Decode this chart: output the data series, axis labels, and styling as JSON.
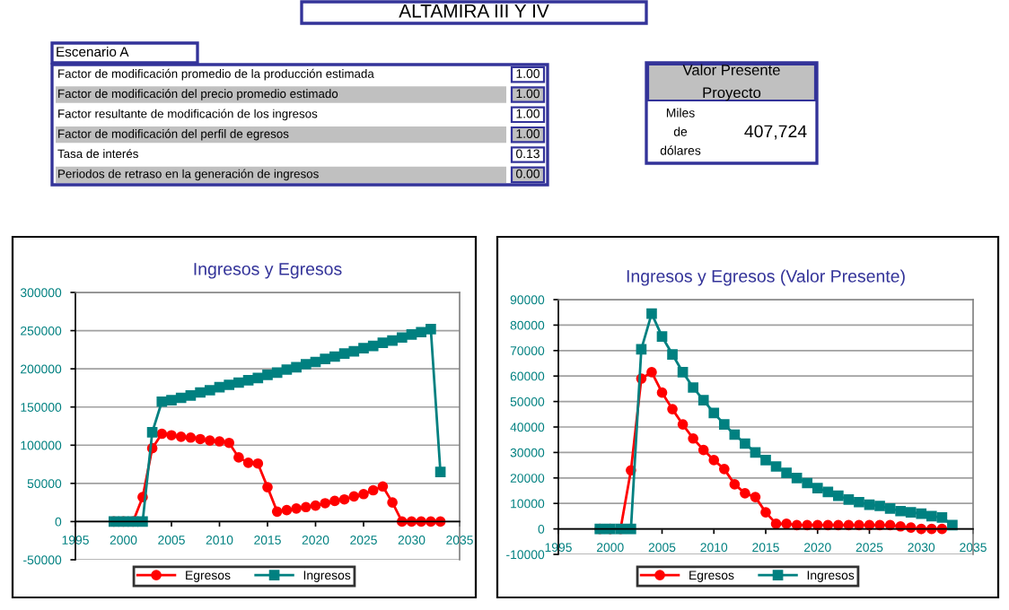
{
  "chart_data": [
    {
      "type": "other",
      "title": "ALTAMIRA III Y IV",
      "subtitle": "Escenario A",
      "categories": [
        "Factor de modificación promedio de la producción estimada",
        "Factor de modificación del precio promedio estimado",
        "Factor resultante de modificación de los ingresos",
        "Factor de modificación del perfil de egresos",
        "Tasa de interés",
        "Periodos de retraso en la generación de ingresos"
      ],
      "value_labels": [
        "1.00",
        "1.00",
        "1.00",
        "1.00",
        "0.13",
        "0.00"
      ],
      "annotations": [
        "Valor Presente\nProyecto",
        "Miles\nde\ndólares",
        "407,724"
      ]
    },
    {
      "type": "line",
      "title": "Ingresos y Egresos",
      "x": [
        1999,
        2000,
        2001,
        2002,
        2003,
        2004,
        2005,
        2006,
        2007,
        2008,
        2009,
        2010,
        2011,
        2012,
        2013,
        2014,
        2015,
        2016,
        2017,
        2018,
        2019,
        2020,
        2021,
        2022,
        2023,
        2024,
        2025,
        2026,
        2027,
        2028,
        2029,
        2030,
        2031,
        2032,
        2033
      ],
      "series": [
        {
          "name": "Egresos",
          "color": "#ff0000",
          "marker": "circle",
          "values": [
            0,
            0,
            0,
            32000,
            96000,
            115000,
            113000,
            111000,
            110000,
            108000,
            106000,
            105000,
            103000,
            84000,
            77000,
            76000,
            45000,
            13000,
            15000,
            17000,
            19000,
            21000,
            24000,
            27000,
            29000,
            33000,
            36000,
            41000,
            46000,
            25000,
            0,
            0,
            0,
            0,
            0
          ]
        },
        {
          "name": "Ingresos",
          "color": "#008080",
          "marker": "square",
          "values": [
            0,
            0,
            0,
            0,
            117000,
            157000,
            159000,
            162000,
            165000,
            169000,
            172000,
            176000,
            179000,
            182000,
            185000,
            188000,
            192000,
            195000,
            199000,
            202000,
            206000,
            209000,
            213000,
            216000,
            220000,
            223000,
            227000,
            230000,
            234000,
            237000,
            241000,
            245000,
            248000,
            252000,
            65000
          ]
        }
      ],
      "xlim": [
        1995,
        2035
      ],
      "xticks": [
        1995,
        2000,
        2005,
        2010,
        2015,
        2020,
        2025,
        2030,
        2035
      ],
      "ylim": [
        -50000,
        300000
      ],
      "yticks": [
        -50000,
        0,
        50000,
        100000,
        150000,
        200000,
        250000,
        300000
      ],
      "grid": "y",
      "legend": "bottom"
    },
    {
      "type": "line",
      "title": "Ingresos y Egresos (Valor Presente)",
      "x": [
        1999,
        2000,
        2001,
        2002,
        2003,
        2004,
        2005,
        2006,
        2007,
        2008,
        2009,
        2010,
        2011,
        2012,
        2013,
        2014,
        2015,
        2016,
        2017,
        2018,
        2019,
        2020,
        2021,
        2022,
        2023,
        2024,
        2025,
        2026,
        2027,
        2028,
        2029,
        2030,
        2031,
        2032,
        2033
      ],
      "series": [
        {
          "name": "Egresos",
          "color": "#ff0000",
          "marker": "circle",
          "values": [
            0,
            0,
            0,
            23000,
            59000,
            61500,
            53500,
            47000,
            41000,
            35500,
            31000,
            27000,
            23500,
            17500,
            14000,
            12500,
            6500,
            2000,
            2000,
            1500,
            1500,
            1500,
            1500,
            1500,
            1500,
            1500,
            1500,
            1500,
            1500,
            1000,
            500,
            0,
            0,
            0,
            null
          ]
        },
        {
          "name": "Ingresos",
          "color": "#008080",
          "marker": "square",
          "values": [
            0,
            0,
            0,
            0,
            70500,
            84500,
            75500,
            68500,
            61500,
            55500,
            50500,
            45500,
            41000,
            37000,
            33500,
            30000,
            27000,
            24500,
            22000,
            20000,
            18000,
            16000,
            14500,
            13000,
            11500,
            10500,
            9500,
            9000,
            8000,
            7000,
            6500,
            6000,
            5000,
            4500,
            1500
          ]
        }
      ],
      "xlim": [
        1995,
        2035
      ],
      "xticks": [
        1995,
        2000,
        2005,
        2010,
        2015,
        2020,
        2025,
        2030,
        2035
      ],
      "ylim": [
        -10000,
        90000
      ],
      "yticks": [
        -10000,
        0,
        10000,
        20000,
        30000,
        40000,
        50000,
        60000,
        70000,
        80000,
        90000
      ],
      "grid": "y",
      "legend": "bottom"
    }
  ]
}
